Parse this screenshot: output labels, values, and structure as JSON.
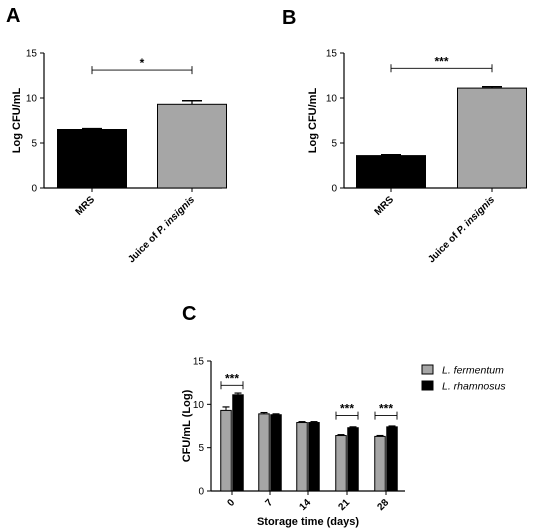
{
  "chart_data": [
    {
      "panel": "A",
      "type": "bar",
      "ylabel": "Log CFU/mL",
      "ylim": [
        0,
        15
      ],
      "yticks": [
        0,
        5,
        10,
        15
      ],
      "categories": [
        {
          "parts": [
            {
              "t": "MRS",
              "i": false
            }
          ]
        },
        {
          "parts": [
            {
              "t": "Juice of ",
              "i": false
            },
            {
              "t": "P. insignis",
              "i": true
            }
          ]
        }
      ],
      "values": [
        6.5,
        9.3
      ],
      "errors": [
        0.1,
        0.4
      ],
      "colors": [
        "#000000",
        "#a6a6a6"
      ],
      "significance": [
        {
          "from": 0,
          "to": 1,
          "label": "*",
          "y": 13.1
        }
      ]
    },
    {
      "panel": "B",
      "type": "bar",
      "ylabel": "Log CFU/mL",
      "ylim": [
        0,
        15
      ],
      "yticks": [
        0,
        5,
        10,
        15
      ],
      "categories": [
        {
          "parts": [
            {
              "t": "MRS",
              "i": false
            }
          ]
        },
        {
          "parts": [
            {
              "t": "Juice of ",
              "i": false
            },
            {
              "t": "P. insignis",
              "i": true
            }
          ]
        }
      ],
      "values": [
        3.6,
        11.1
      ],
      "errors": [
        0.1,
        0.15
      ],
      "colors": [
        "#000000",
        "#a6a6a6"
      ],
      "significance": [
        {
          "from": 0,
          "to": 1,
          "label": "***",
          "y": 13.3
        }
      ]
    },
    {
      "panel": "C",
      "type": "bar",
      "ylabel": "CFU/mL (Log)",
      "xlabel": "Storage time (days)",
      "ylim": [
        0,
        15
      ],
      "yticks": [
        0,
        5,
        10,
        15
      ],
      "categories": [
        "0",
        "7",
        "14",
        "21",
        "28"
      ],
      "series": [
        {
          "name": "L. fermentum",
          "color": "#a6a6a6",
          "values": [
            9.3,
            8.9,
            7.9,
            6.4,
            6.3
          ],
          "errors": [
            0.4,
            0.15,
            0.1,
            0.1,
            0.1
          ]
        },
        {
          "name": "L. rhamnosus",
          "color": "#000000",
          "values": [
            11.1,
            8.8,
            7.9,
            7.3,
            7.4
          ],
          "errors": [
            0.2,
            0.1,
            0.1,
            0.1,
            0.1
          ]
        }
      ],
      "significance": [
        {
          "category": 0,
          "label": "***",
          "y": 12.2
        },
        {
          "category": 3,
          "label": "***",
          "y": 8.7
        },
        {
          "category": 4,
          "label": "***",
          "y": 8.7
        }
      ],
      "legend": "right"
    }
  ]
}
